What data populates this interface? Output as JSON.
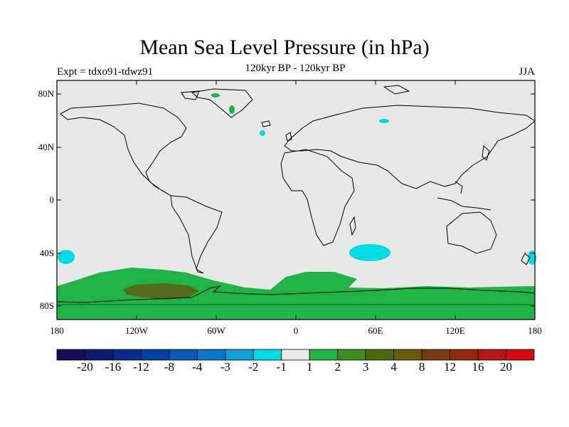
{
  "title": "Mean Sea Level Pressure (in hPa)",
  "experiment": "Expt = tdxo91-tdwz91",
  "subtitle": "120kyr BP - 120kyr BP",
  "season": "JJA",
  "lat_ticks": [
    "80N",
    "40N",
    "0",
    "40S",
    "80S"
  ],
  "lon_ticks": [
    "180",
    "120W",
    "60W",
    "0",
    "60E",
    "120E",
    "180"
  ],
  "colorbar": {
    "colors": [
      "#1a0a5a",
      "#0d1b6e",
      "#0a2a8a",
      "#0040a0",
      "#0a5ab4",
      "#0a78c8",
      "#10a0d8",
      "#00dce6",
      "#e8e8e8",
      "#20b446",
      "#3c8c1e",
      "#4c6a0c",
      "#6a5a0a",
      "#7a3c0a",
      "#902a0a",
      "#b41414",
      "#d20a0a"
    ],
    "labels": [
      "-20",
      "-16",
      "-12",
      "-8",
      "-4",
      "-3",
      "-2",
      "-1",
      "1",
      "2",
      "3",
      "4",
      "8",
      "12",
      "16",
      "20"
    ]
  },
  "legend_colors": {
    "background": "#e8e8e8",
    "cyan": "#00dce6",
    "green": "#20b446",
    "darkgreen": "#556b1a"
  }
}
